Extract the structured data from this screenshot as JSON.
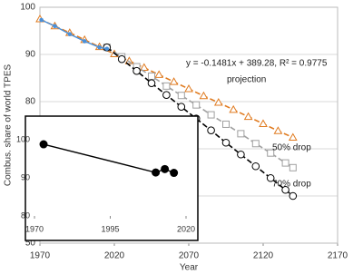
{
  "chart_data": [
    {
      "type": "line",
      "x_label": "Year",
      "y_label": "Combus. share of world TPES",
      "xlim": [
        1970,
        2170
      ],
      "xticks": [
        1970,
        2020,
        2070,
        2120,
        2170
      ],
      "ylim": [
        50,
        100
      ],
      "yticks": [
        50,
        60,
        70,
        80,
        90,
        100
      ],
      "grid": true,
      "annotations": [
        "y = -0.1481x + 389.28, R² = 0.9775",
        "projection",
        "50% drop",
        "70% drop"
      ],
      "series": [
        {
          "color": "#e07b20",
          "marker": "triangle",
          "dash": true,
          "x": [
            1970,
            1980,
            1990,
            2000,
            2010,
            2020,
            2030,
            2040,
            2050,
            2060,
            2070,
            2080,
            2090,
            2100,
            2110,
            2120,
            2130,
            2140
          ],
          "values": [
            97.5,
            96.0,
            94.6,
            93.1,
            91.6,
            90.1,
            88.6,
            87.2,
            85.7,
            84.2,
            82.7,
            81.2,
            79.8,
            78.3,
            76.8,
            75.3,
            73.8,
            72.4
          ]
        },
        {
          "color": "#a0a0a0",
          "marker": "square",
          "dash": true,
          "x": [
            2015,
            2025,
            2035,
            2045,
            2055,
            2065,
            2075,
            2085,
            2095,
            2105,
            2115,
            2125,
            2135,
            2140
          ],
          "values": [
            91.5,
            89.5,
            87.4,
            85.4,
            83.3,
            81.3,
            79.3,
            77.2,
            75.2,
            73.2,
            71.1,
            69.1,
            67.0,
            66.0
          ]
        },
        {
          "color": "#000000",
          "marker": "circle",
          "dash": true,
          "x": [
            2015,
            2025,
            2035,
            2045,
            2055,
            2065,
            2075,
            2085,
            2095,
            2105,
            2115,
            2125,
            2135,
            2140
          ],
          "values": [
            91.5,
            89.0,
            86.5,
            83.9,
            81.4,
            78.9,
            76.4,
            73.9,
            71.3,
            68.8,
            66.3,
            63.8,
            61.3,
            60.0
          ]
        },
        {
          "color": "#4a90d9",
          "marker": "dot",
          "dash": false,
          "x": [
            1971,
            1980,
            1990,
            2000,
            2010,
            2015
          ],
          "values": [
            97.3,
            96.0,
            94.3,
            92.8,
            91.5,
            91.2
          ]
        }
      ]
    },
    {
      "type": "line",
      "xlim": [
        1970,
        2020
      ],
      "xticks": [
        1970,
        1995,
        2020
      ],
      "ylim": [
        80,
        100
      ],
      "yticks": [
        80,
        90,
        100
      ],
      "grid": false,
      "series": [
        {
          "color": "#000000",
          "marker": "filled",
          "dash": false,
          "x": [
            1973,
            2010,
            2013,
            2016
          ],
          "values": [
            98.8,
            91.4,
            92.3,
            91.3
          ]
        }
      ]
    }
  ]
}
